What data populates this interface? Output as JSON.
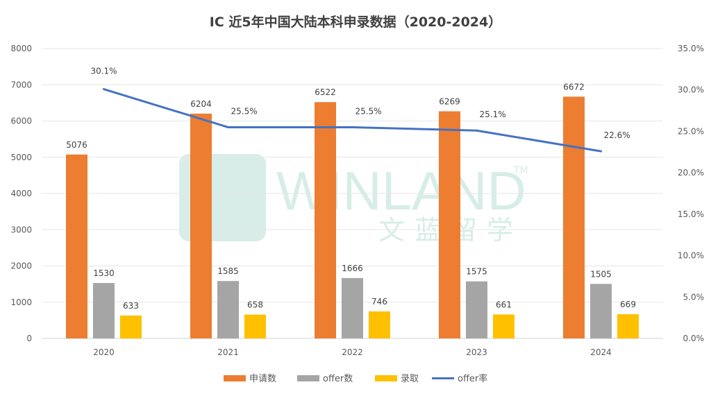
{
  "chart_data": {
    "type": "bar+line",
    "title": "IC 近5年中国大陆本科申录数据（2020-2024）",
    "categories": [
      "2020",
      "2021",
      "2022",
      "2023",
      "2024"
    ],
    "series": [
      {
        "name": "申请数",
        "type": "bar",
        "axis": "left",
        "color": "#ED7D31",
        "values": [
          5076,
          6204,
          6522,
          6269,
          6672
        ]
      },
      {
        "name": "offer数",
        "type": "bar",
        "axis": "left",
        "color": "#A5A5A5",
        "values": [
          1530,
          1585,
          1666,
          1575,
          1505
        ]
      },
      {
        "name": "录取",
        "type": "bar",
        "axis": "left",
        "color": "#FFC000",
        "values": [
          633,
          658,
          746,
          661,
          669
        ]
      },
      {
        "name": "offer率",
        "type": "line",
        "axis": "right",
        "color": "#4472C4",
        "values": [
          30.1,
          25.5,
          25.5,
          25.1,
          22.6
        ],
        "labels": [
          "30.1%",
          "25.5%",
          "25.5%",
          "25.1%",
          "22.6%"
        ]
      }
    ],
    "ylim": [
      0,
      8000
    ],
    "y_ticks": [
      "0",
      "1000",
      "2000",
      "3000",
      "4000",
      "5000",
      "6000",
      "7000",
      "8000"
    ],
    "y2lim": [
      0,
      35
    ],
    "y2_ticks": [
      "0.0%",
      "5.0%",
      "10.0%",
      "15.0%",
      "20.0%",
      "25.0%",
      "30.0%",
      "35.0%"
    ],
    "grid": true,
    "legend": "bottom"
  },
  "watermark": {
    "brand": "WINLAND",
    "tm": "TM",
    "cn": "文蓝留学"
  }
}
